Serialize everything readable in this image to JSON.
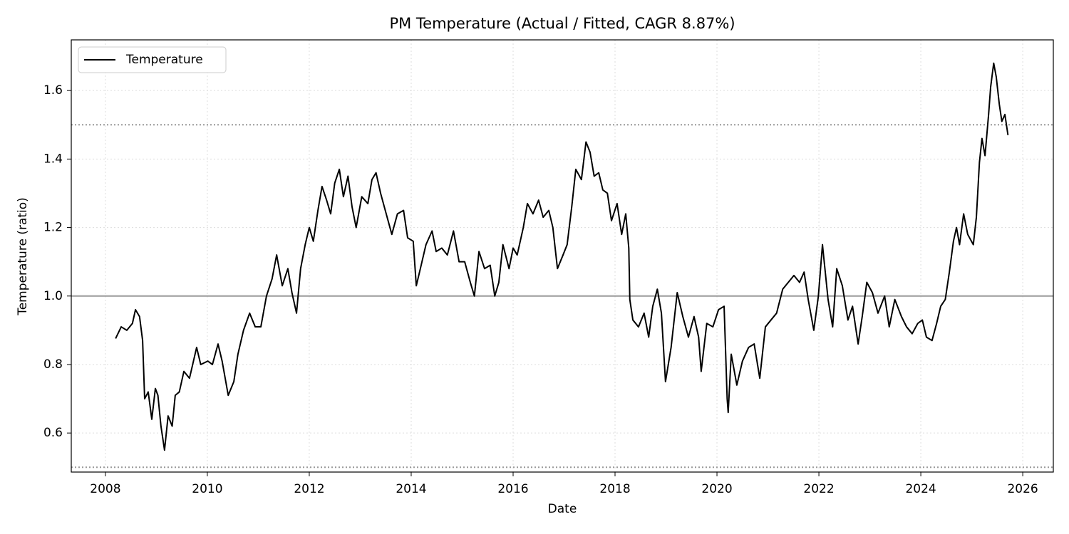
{
  "chart_data": {
    "type": "line",
    "title": "PM Temperature (Actual / Fitted, CAGR 8.87%)",
    "xlabel": "Date",
    "ylabel": "Temperature (ratio)",
    "x": [
      2008.2,
      2008.31,
      2008.42,
      2008.53,
      2008.59,
      2008.67,
      2008.73,
      2008.77,
      2008.84,
      2008.91,
      2008.98,
      2009.03,
      2009.09,
      2009.16,
      2009.23,
      2009.31,
      2009.37,
      2009.45,
      2009.54,
      2009.65,
      2009.79,
      2009.87,
      2010.01,
      2010.1,
      2010.21,
      2010.29,
      2010.41,
      2010.52,
      2010.6,
      2010.71,
      2010.83,
      2010.94,
      2011.05,
      2011.16,
      2011.27,
      2011.36,
      2011.47,
      2011.58,
      2011.66,
      2011.75,
      2011.83,
      2011.92,
      2012.0,
      2012.08,
      2012.17,
      2012.25,
      2012.34,
      2012.42,
      2012.5,
      2012.59,
      2012.67,
      2012.76,
      2012.84,
      2012.92,
      2013.03,
      2013.15,
      2013.23,
      2013.31,
      2013.4,
      2013.51,
      2013.62,
      2013.73,
      2013.85,
      2013.93,
      2014.04,
      2014.1,
      2014.18,
      2014.29,
      2014.41,
      2014.49,
      2014.6,
      2014.71,
      2014.83,
      2014.94,
      2015.05,
      2015.16,
      2015.24,
      2015.33,
      2015.44,
      2015.55,
      2015.64,
      2015.72,
      2015.8,
      2015.92,
      2016.0,
      2016.08,
      2016.2,
      2016.28,
      2016.39,
      2016.5,
      2016.59,
      2016.7,
      2016.78,
      2016.87,
      2016.98,
      2017.06,
      2017.15,
      2017.23,
      2017.34,
      2017.43,
      2017.51,
      2017.59,
      2017.68,
      2017.76,
      2017.85,
      2017.93,
      2018.04,
      2018.13,
      2018.21,
      2018.27,
      2018.29,
      2018.35,
      2018.46,
      2018.57,
      2018.66,
      2018.74,
      2018.83,
      2018.91,
      2018.99,
      2019.1,
      2019.22,
      2019.33,
      2019.44,
      2019.55,
      2019.64,
      2019.69,
      2019.8,
      2019.92,
      2020.03,
      2020.14,
      2020.2,
      2020.22,
      2020.28,
      2020.39,
      2020.5,
      2020.62,
      2020.73,
      2020.84,
      2020.95,
      2021.06,
      2021.17,
      2021.29,
      2021.4,
      2021.51,
      2021.62,
      2021.71,
      2021.79,
      2021.9,
      2021.99,
      2022.07,
      2022.18,
      2022.27,
      2022.35,
      2022.46,
      2022.57,
      2022.66,
      2022.77,
      2022.85,
      2022.94,
      2023.05,
      2023.16,
      2023.29,
      2023.38,
      2023.49,
      2023.62,
      2023.72,
      2023.83,
      2023.94,
      2024.03,
      2024.11,
      2024.22,
      2024.31,
      2024.39,
      2024.48,
      2024.56,
      2024.64,
      2024.7,
      2024.76,
      2024.84,
      2024.92,
      2025.03,
      2025.09,
      2025.15,
      2025.2,
      2025.26,
      2025.33,
      2025.37,
      2025.43,
      2025.48,
      2025.54,
      2025.59,
      2025.65,
      2025.71
    ],
    "series": [
      {
        "name": "Temperature",
        "color": "#000000",
        "values": [
          0.876,
          0.91,
          0.9,
          0.92,
          0.96,
          0.94,
          0.87,
          0.7,
          0.72,
          0.64,
          0.73,
          0.71,
          0.62,
          0.55,
          0.65,
          0.62,
          0.71,
          0.72,
          0.78,
          0.76,
          0.85,
          0.8,
          0.81,
          0.8,
          0.86,
          0.81,
          0.71,
          0.75,
          0.83,
          0.9,
          0.95,
          0.91,
          0.91,
          1.0,
          1.05,
          1.12,
          1.03,
          1.08,
          1.01,
          0.95,
          1.08,
          1.15,
          1.2,
          1.16,
          1.25,
          1.32,
          1.28,
          1.24,
          1.33,
          1.37,
          1.29,
          1.35,
          1.26,
          1.2,
          1.29,
          1.27,
          1.34,
          1.36,
          1.3,
          1.24,
          1.18,
          1.24,
          1.25,
          1.17,
          1.16,
          1.03,
          1.08,
          1.15,
          1.19,
          1.13,
          1.14,
          1.12,
          1.19,
          1.1,
          1.1,
          1.04,
          1.0,
          1.13,
          1.08,
          1.09,
          1.0,
          1.04,
          1.15,
          1.08,
          1.14,
          1.12,
          1.2,
          1.27,
          1.24,
          1.28,
          1.23,
          1.25,
          1.2,
          1.08,
          1.12,
          1.15,
          1.26,
          1.37,
          1.34,
          1.45,
          1.42,
          1.35,
          1.36,
          1.31,
          1.3,
          1.22,
          1.27,
          1.18,
          1.24,
          1.14,
          0.99,
          0.93,
          0.91,
          0.95,
          0.88,
          0.97,
          1.02,
          0.95,
          0.75,
          0.85,
          1.01,
          0.94,
          0.88,
          0.94,
          0.88,
          0.78,
          0.92,
          0.91,
          0.96,
          0.97,
          0.7,
          0.66,
          0.83,
          0.74,
          0.81,
          0.85,
          0.86,
          0.76,
          0.91,
          0.93,
          0.95,
          1.02,
          1.04,
          1.06,
          1.04,
          1.07,
          0.99,
          0.9,
          1.0,
          1.15,
          0.99,
          0.91,
          1.08,
          1.03,
          0.93,
          0.97,
          0.86,
          0.94,
          1.04,
          1.01,
          0.95,
          1.0,
          0.91,
          0.99,
          0.94,
          0.91,
          0.89,
          0.92,
          0.93,
          0.88,
          0.87,
          0.92,
          0.97,
          0.99,
          1.07,
          1.16,
          1.2,
          1.15,
          1.24,
          1.18,
          1.15,
          1.23,
          1.39,
          1.46,
          1.41,
          1.53,
          1.61,
          1.68,
          1.64,
          1.56,
          1.51,
          1.53,
          1.47
        ]
      }
    ],
    "hlines": [
      {
        "value": 1.0,
        "style": "solid",
        "color": "#999999"
      },
      {
        "value": 1.5,
        "style": "dotted",
        "color": "#999999"
      },
      {
        "value": 0.5,
        "style": "dotted",
        "color": "#999999"
      }
    ],
    "xlim": [
      2007.33,
      2026.6
    ],
    "ylim": [
      0.486,
      1.748
    ],
    "xticks": [
      2008,
      2010,
      2012,
      2014,
      2016,
      2018,
      2020,
      2022,
      2024,
      2026
    ],
    "yticks": [
      0.6,
      0.8,
      {
        "value": 1.0,
        "label": "1.0"
      },
      1.2,
      1.4,
      1.6
    ],
    "grid": true,
    "legend": "upper-left"
  }
}
